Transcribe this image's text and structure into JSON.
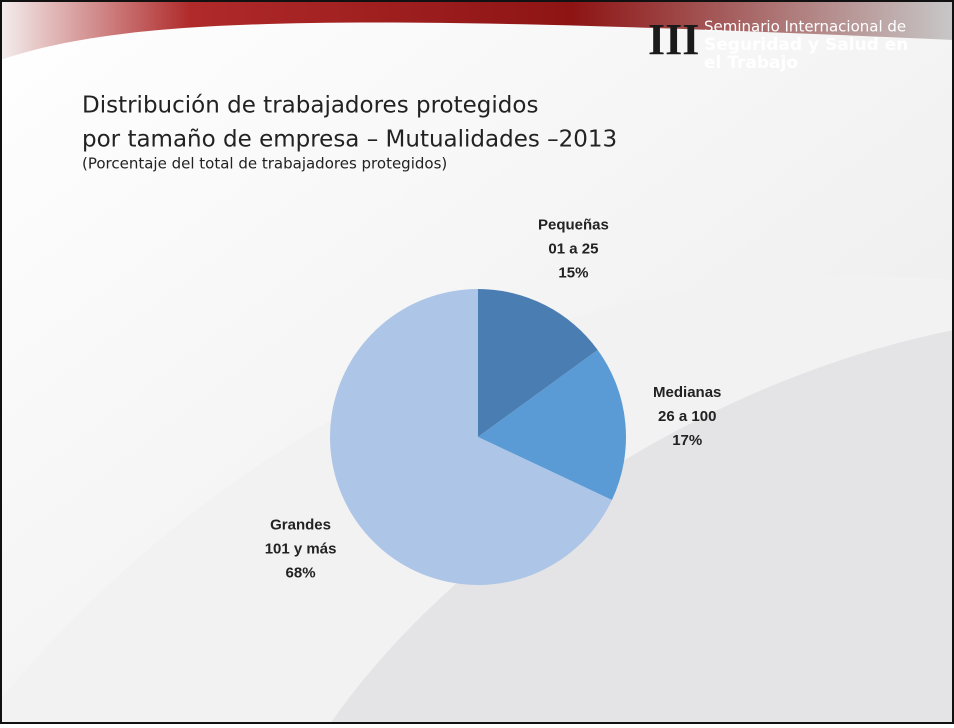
{
  "header": {
    "numeral": "III",
    "lines": [
      "Seminario Internacional de",
      "Seguridad y Salud en",
      "el Trabajo"
    ]
  },
  "chart_data": {
    "type": "pie",
    "title": [
      "Distribución de trabajadores protegidos",
      "por tamaño de empresa – Mutualidades –2013"
    ],
    "subtitle": "(Porcentaje del total de trabajadores protegidos)",
    "categories": [
      "Pequeñas",
      "Medianas",
      "Grandes"
    ],
    "ranges": [
      "01 a 25",
      "26 a 100",
      "101 y más"
    ],
    "values": [
      15,
      17,
      68
    ],
    "value_labels": [
      "15%",
      "17%",
      "68%"
    ],
    "colors": [
      "#4a7eb2",
      "#5b9bd5",
      "#adc5e6"
    ]
  }
}
